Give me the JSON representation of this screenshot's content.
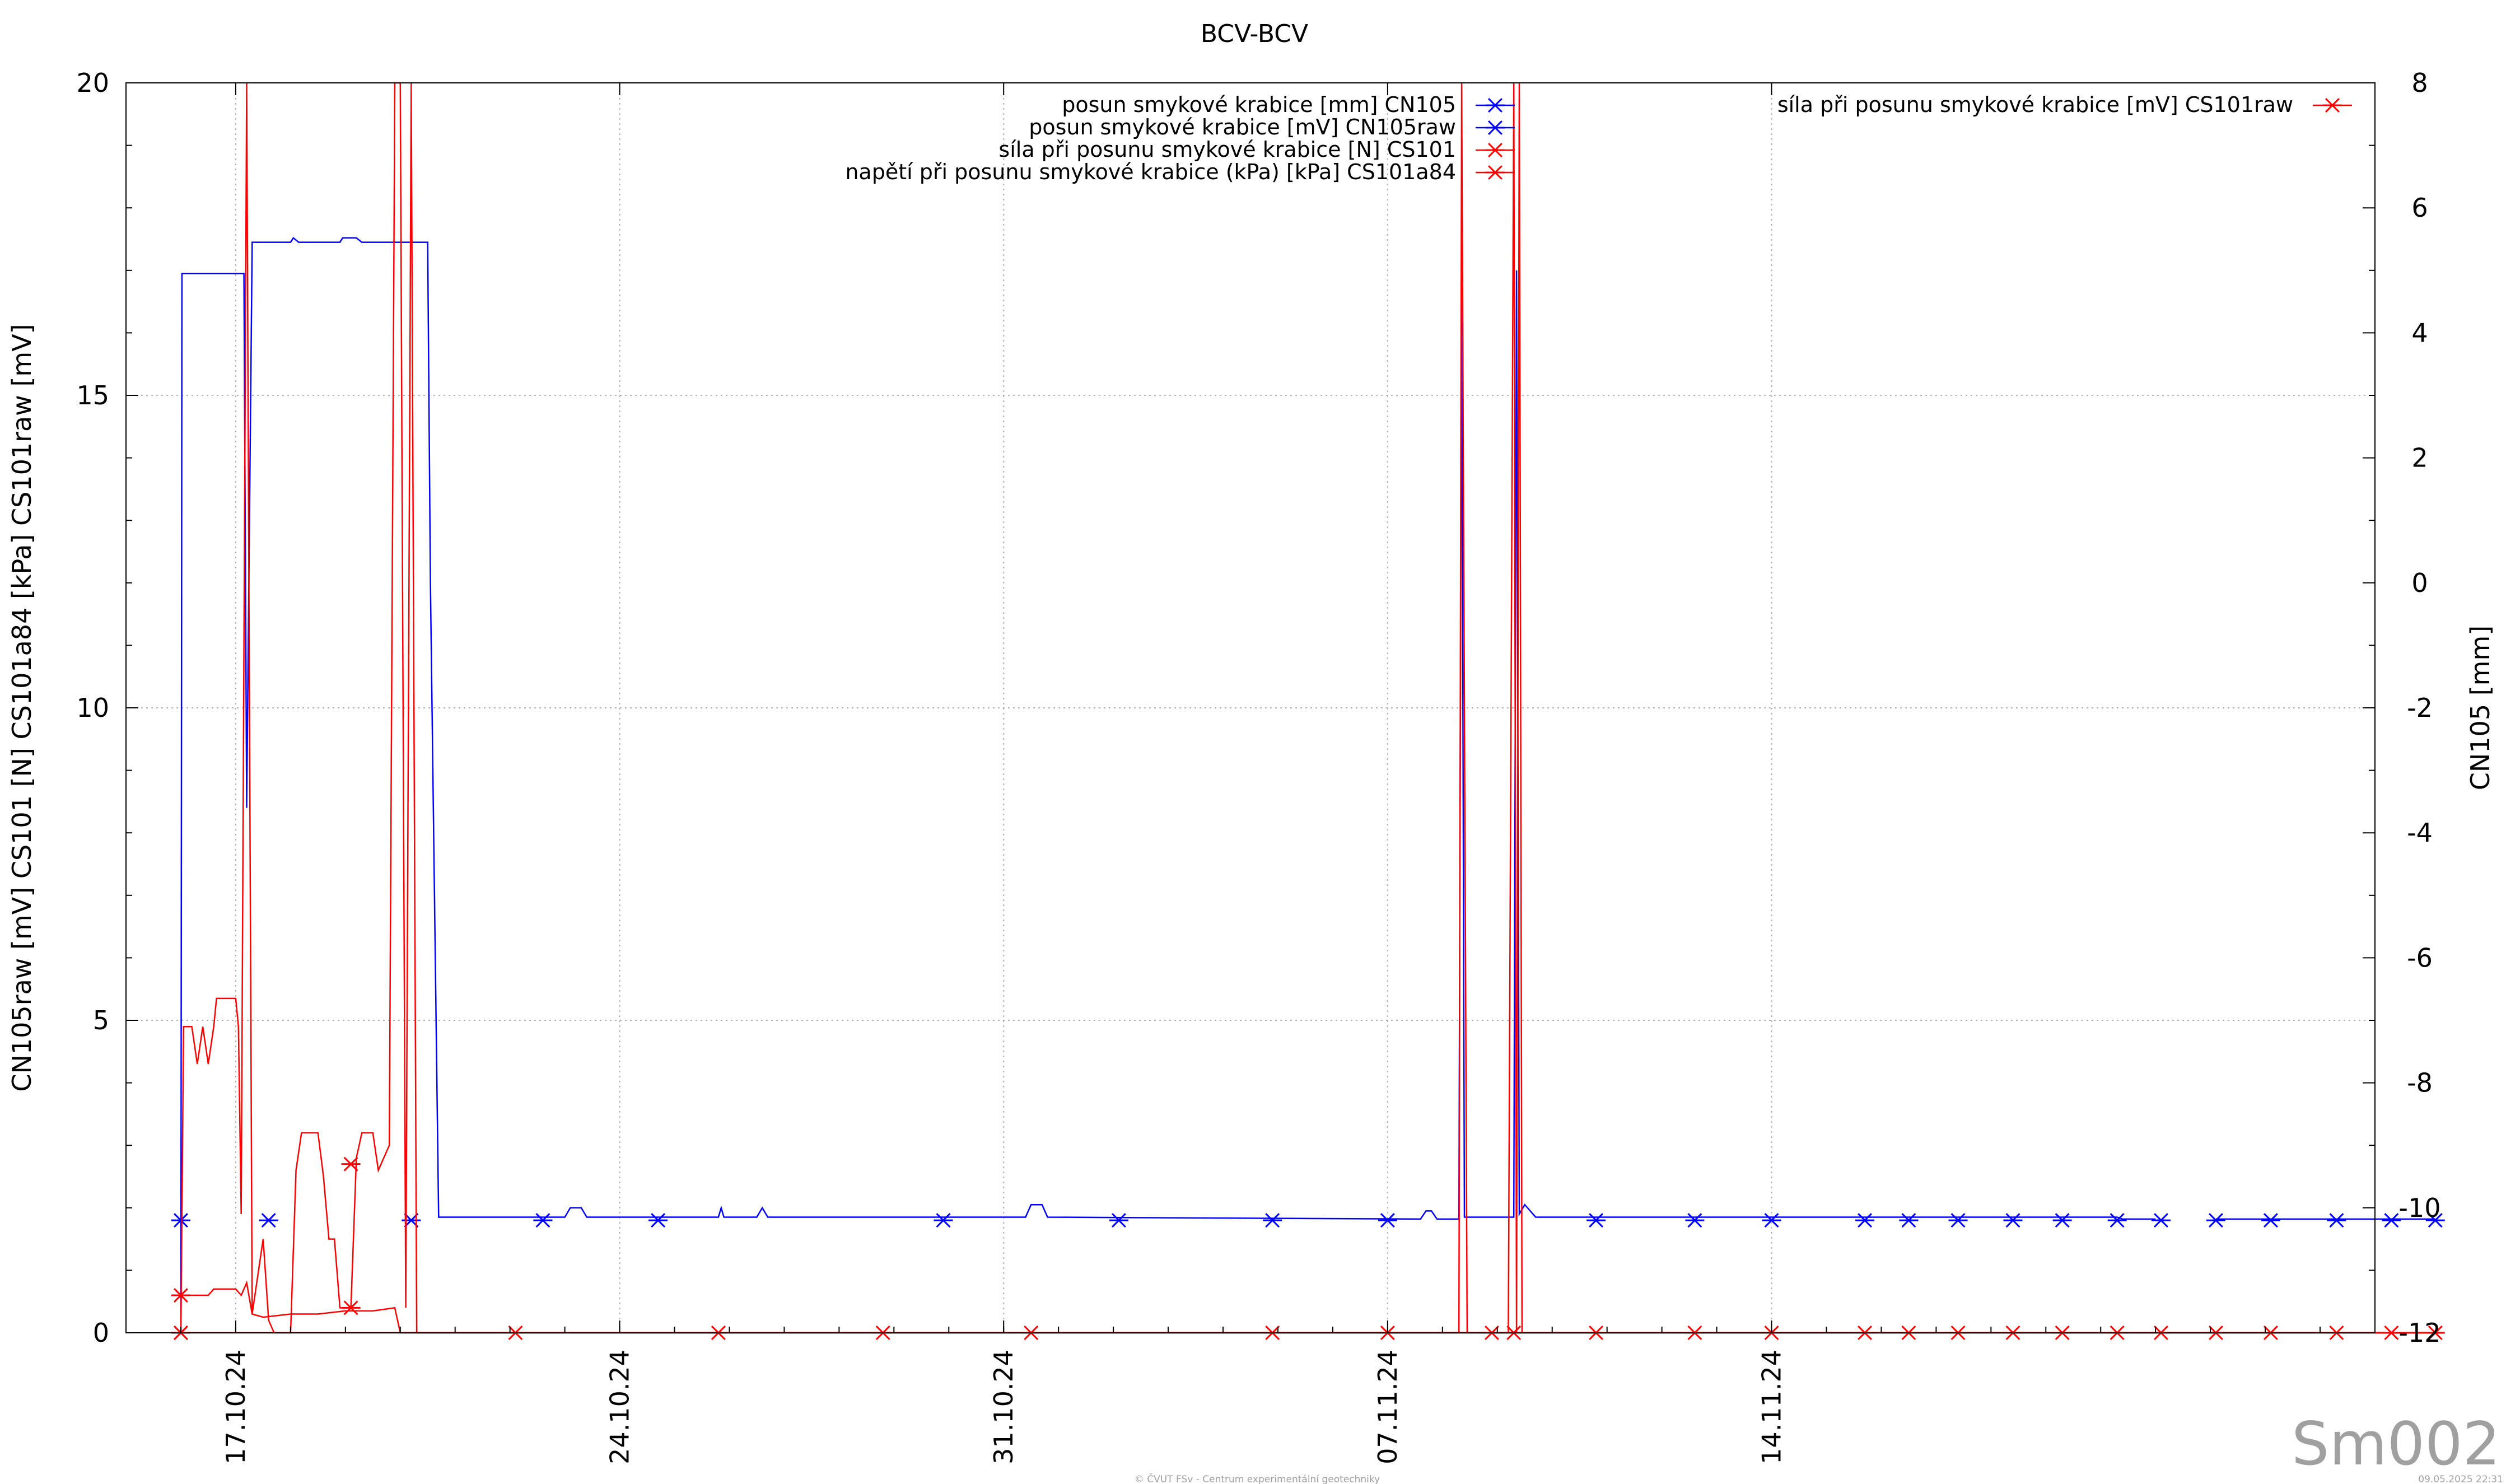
{
  "chart_data": {
    "type": "line",
    "title": "BCV-BCV",
    "ylabel_left": "CN105raw [mV] CS101 [N] CS101a84 [kPa] CS101raw [mV]",
    "ylabel_right": "CN105 [mm]",
    "ylim_left": [
      0,
      20
    ],
    "ylim_right": [
      -12,
      8
    ],
    "yticks_left": [
      "0",
      "5",
      "10",
      "15",
      "20"
    ],
    "yticks_right": [
      "-12",
      "-10",
      "-8",
      "-6",
      "-4",
      "-2",
      "0",
      "2",
      "4",
      "6",
      "8"
    ],
    "xlim": [
      "2024-10-15",
      "2024-11-25"
    ],
    "xticks": [
      {
        "date": "2024-10-17",
        "label": "17.10.24"
      },
      {
        "date": "2024-10-24",
        "label": "24.10.24"
      },
      {
        "date": "2024-10-31",
        "label": "31.10.24"
      },
      {
        "date": "2024-11-07",
        "label": "07.11.24"
      },
      {
        "date": "2024-11-14",
        "label": "14.11.24"
      }
    ],
    "grid": true,
    "legend_left": "top-right",
    "legend_right": "top-right",
    "series": [
      {
        "name": "posun smykové krabice [mm] CN105",
        "color": "#0000ff",
        "axis": "right",
        "markers": [
          [
            15.0,
            -10.2
          ],
          [
            16.6,
            -10.2
          ],
          [
            19.2,
            -10.2
          ],
          [
            21.6,
            -10.2
          ],
          [
            23.7,
            -10.2
          ],
          [
            28.9,
            -10.2
          ],
          [
            32.1,
            -10.2
          ],
          [
            34.9,
            -10.2
          ],
          [
            37.0,
            -10.2
          ],
          [
            40.8,
            -10.2
          ],
          [
            42.6,
            -10.2
          ],
          [
            44.0,
            -10.2
          ],
          [
            45.7,
            -10.2
          ],
          [
            46.5,
            -10.2
          ],
          [
            47.4,
            -10.2
          ],
          [
            48.4,
            -10.2
          ],
          [
            49.3,
            -10.2
          ],
          [
            50.3,
            -10.2
          ],
          [
            51.1,
            -10.2
          ],
          [
            52.1,
            -10.2
          ],
          [
            53.1,
            -10.2
          ],
          [
            54.3,
            -10.2
          ],
          [
            55.3,
            -10.2
          ],
          [
            56.1,
            -10.2
          ]
        ]
      },
      {
        "name": "posun smykové krabice [mV] CN105raw",
        "color": "#0000ff",
        "axis": "left",
        "points": [
          [
            15.0,
            0.0
          ],
          [
            15.02,
            16.95
          ],
          [
            16.15,
            16.95
          ],
          [
            16.2,
            8.4
          ],
          [
            16.3,
            17.45
          ],
          [
            17.0,
            17.45
          ],
          [
            17.05,
            17.52
          ],
          [
            17.15,
            17.45
          ],
          [
            17.9,
            17.45
          ],
          [
            17.95,
            17.52
          ],
          [
            18.2,
            17.52
          ],
          [
            18.3,
            17.45
          ],
          [
            18.6,
            17.45
          ],
          [
            19.5,
            17.45
          ],
          [
            19.55,
            12.0
          ],
          [
            19.7,
            1.85
          ],
          [
            22.0,
            1.85
          ],
          [
            22.1,
            2.0
          ],
          [
            22.3,
            2.0
          ],
          [
            22.4,
            1.85
          ],
          [
            24.8,
            1.85
          ],
          [
            24.85,
            2.0
          ],
          [
            24.9,
            1.85
          ],
          [
            25.5,
            1.85
          ],
          [
            25.6,
            2.0
          ],
          [
            25.7,
            1.85
          ],
          [
            30.4,
            1.85
          ],
          [
            30.5,
            2.05
          ],
          [
            30.7,
            2.05
          ],
          [
            30.8,
            1.85
          ],
          [
            37.6,
            1.82
          ],
          [
            37.7,
            1.95
          ],
          [
            37.8,
            1.95
          ],
          [
            37.9,
            1.82
          ],
          [
            38.3,
            1.82
          ],
          [
            38.35,
            17.0
          ],
          [
            38.4,
            1.85
          ],
          [
            38.9,
            1.85
          ],
          [
            39.3,
            1.85
          ],
          [
            39.35,
            17.0
          ],
          [
            39.4,
            1.9
          ],
          [
            39.5,
            2.05
          ],
          [
            39.7,
            1.85
          ],
          [
            50.3,
            1.85
          ],
          [
            50.4,
            1.82
          ],
          [
            51.0,
            1.82
          ]
        ],
        "points2": [
          [
            52.1,
            1.82
          ],
          [
            56.1,
            1.82
          ]
        ]
      },
      {
        "name": "síla při posunu smykové krabice [N] CS101",
        "color": "#ff0000",
        "axis": "left",
        "points": [
          [
            15.0,
            0.0
          ],
          [
            15.05,
            4.9
          ],
          [
            15.2,
            4.9
          ],
          [
            15.3,
            4.3
          ],
          [
            15.4,
            4.9
          ],
          [
            15.5,
            4.3
          ],
          [
            15.6,
            4.9
          ],
          [
            15.65,
            5.35
          ],
          [
            16.0,
            5.35
          ],
          [
            16.05,
            4.9
          ],
          [
            16.1,
            1.9
          ],
          [
            16.2,
            20.0
          ],
          [
            16.3,
            0.3
          ],
          [
            16.5,
            1.5
          ],
          [
            16.6,
            0.2
          ],
          [
            16.7,
            0.0
          ],
          [
            17.0,
            0.0
          ],
          [
            17.1,
            2.6
          ],
          [
            17.2,
            3.2
          ],
          [
            17.5,
            3.2
          ],
          [
            17.6,
            2.5
          ],
          [
            17.7,
            1.5
          ],
          [
            17.8,
            1.5
          ],
          [
            17.9,
            0.4
          ],
          [
            18.1,
            0.4
          ],
          [
            18.15,
            1.6
          ],
          [
            18.2,
            2.8
          ],
          [
            18.3,
            3.2
          ],
          [
            18.5,
            3.2
          ],
          [
            18.6,
            2.6
          ],
          [
            18.8,
            3.0
          ],
          [
            18.9,
            20.0
          ],
          [
            19.0,
            20.0
          ],
          [
            19.1,
            0.4
          ],
          [
            19.2,
            20.0
          ],
          [
            19.3,
            0.0
          ],
          [
            38.0,
            0.0
          ],
          [
            38.3,
            0.0
          ],
          [
            38.35,
            20.0
          ],
          [
            38.45,
            0.0
          ],
          [
            39.2,
            0.0
          ],
          [
            39.3,
            20.0
          ],
          [
            39.35,
            0.0
          ],
          [
            39.4,
            20.0
          ],
          [
            39.45,
            0.0
          ],
          [
            56.1,
            0.0
          ]
        ],
        "markers": [
          [
            15.0,
            0.0
          ],
          [
            18.1,
            0.4
          ],
          [
            21.1,
            0.0
          ],
          [
            24.8,
            0.0
          ],
          [
            27.8,
            0.0
          ]
        ]
      },
      {
        "name": "napětí při posunu smykové krabice (kPa) [kPa] CS101a84",
        "color": "#ff0000",
        "axis": "left",
        "points": [
          [
            15.0,
            0.6
          ],
          [
            15.5,
            0.6
          ],
          [
            15.6,
            0.7
          ],
          [
            16.0,
            0.7
          ],
          [
            16.1,
            0.6
          ],
          [
            16.2,
            0.8
          ],
          [
            16.3,
            0.3
          ],
          [
            16.5,
            0.25
          ],
          [
            17.0,
            0.3
          ],
          [
            17.5,
            0.3
          ],
          [
            18.0,
            0.35
          ],
          [
            18.5,
            0.35
          ],
          [
            18.9,
            0.4
          ],
          [
            19.0,
            0.0
          ],
          [
            56.1,
            0.0
          ]
        ],
        "markers": [
          [
            15.0,
            0.6
          ],
          [
            18.1,
            2.7
          ],
          [
            30.5,
            0.0
          ],
          [
            34.9,
            0.0
          ],
          [
            37.0,
            0.0
          ]
        ]
      },
      {
        "name": "síla při posunu smykové krabice [mV] CS101raw",
        "color": "#ff0000",
        "axis": "left",
        "points": [
          [
            15.0,
            0.0
          ],
          [
            56.1,
            0.0
          ]
        ],
        "markers": [
          [
            15.0,
            0.0
          ],
          [
            38.9,
            0.0
          ],
          [
            39.3,
            0.0
          ],
          [
            40.8,
            0.0
          ],
          [
            42.6,
            0.0
          ],
          [
            44.0,
            0.0
          ],
          [
            45.7,
            0.0
          ],
          [
            46.5,
            0.0
          ],
          [
            47.4,
            0.0
          ],
          [
            48.4,
            0.0
          ],
          [
            49.3,
            0.0
          ],
          [
            50.3,
            0.0
          ],
          [
            51.1,
            0.0
          ],
          [
            52.1,
            0.0
          ],
          [
            53.1,
            0.0
          ],
          [
            54.3,
            0.0
          ],
          [
            55.3,
            0.0
          ],
          [
            56.1,
            0.0
          ]
        ]
      }
    ],
    "watermark": "Sm002",
    "footer_center": "© ČVUT FSv - Centrum experimentální geotechniky",
    "footer_right": "09.05.2025 22:31"
  }
}
